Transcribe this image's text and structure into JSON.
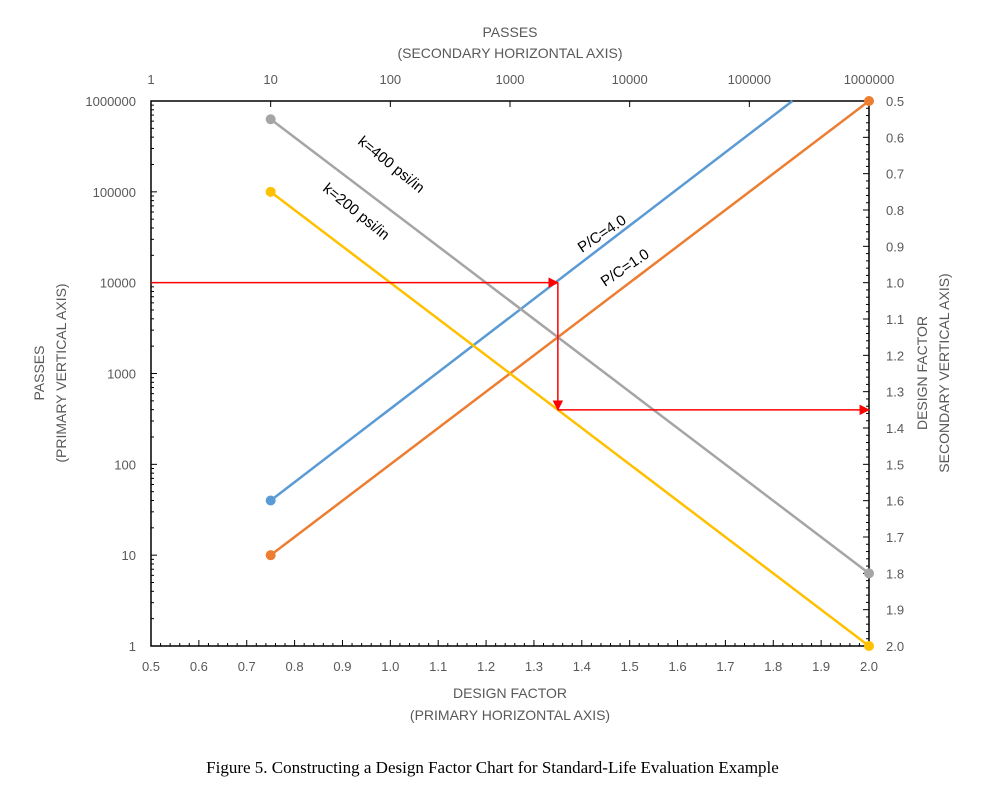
{
  "chart_data": {
    "type": "line",
    "caption": "Figure 5. Constructing a Design Factor Chart for Standard-Life Evaluation Example",
    "axes": {
      "primary_x": {
        "title": [
          "DESIGN FACTOR",
          "(PRIMARY HORIZONTAL AXIS)"
        ],
        "range": [
          0.5,
          2.0
        ],
        "ticks": [
          "0.5",
          "0.6",
          "0.7",
          "0.8",
          "0.9",
          "1.0",
          "1.1",
          "1.2",
          "1.3",
          "1.4",
          "1.5",
          "1.6",
          "1.7",
          "1.8",
          "1.9",
          "2.0"
        ]
      },
      "secondary_x": {
        "title": [
          "PASSES",
          "(SECONDARY HORIZONTAL AXIS)"
        ],
        "scale": "log",
        "range": [
          1,
          1000000
        ],
        "ticks": [
          "1",
          "10",
          "100",
          "1000",
          "10000",
          "100000",
          "1000000"
        ]
      },
      "primary_y": {
        "title": [
          "PASSES",
          "(PRIMARY VERTICAL AXIS)"
        ],
        "scale": "log",
        "range": [
          1,
          1000000
        ],
        "ticks": [
          "1",
          "10",
          "100",
          "1000",
          "10000",
          "100000",
          "1000000"
        ]
      },
      "secondary_y": {
        "title": [
          "DESIGN FACTOR",
          "SECONDARY VERTICAL AXIS)"
        ],
        "range": [
          0.5,
          2.0
        ],
        "reversed": true,
        "ticks": [
          "0.5",
          "0.6",
          "0.7",
          "0.8",
          "0.9",
          "1.0",
          "1.1",
          "1.2",
          "1.3",
          "1.4",
          "1.5",
          "1.6",
          "1.7",
          "1.8",
          "1.9",
          "2.0"
        ]
      }
    },
    "series": [
      {
        "name": "P/C=4.0",
        "color": "#5B9BD5",
        "x": [
          0.75,
          1.84
        ],
        "y": [
          40,
          1000000
        ],
        "markers": [
          true,
          false
        ]
      },
      {
        "name": "P/C=1.0",
        "color": "#ED7D31",
        "x": [
          0.75,
          2.0
        ],
        "y": [
          10,
          1000000
        ],
        "markers": [
          true,
          true
        ]
      },
      {
        "name": "k=400 psi/in",
        "color": "#A5A5A5",
        "x": [
          0.75,
          2.0
        ],
        "y": [
          630000,
          6.3
        ],
        "markers": [
          true,
          true
        ]
      },
      {
        "name": "k=200 psi/in",
        "color": "#FFC000",
        "x": [
          0.75,
          2.0
        ],
        "y": [
          100000,
          1
        ],
        "markers": [
          true,
          true
        ]
      }
    ],
    "construction_arrows": {
      "color": "#FF0000",
      "path": [
        {
          "x": 0.5,
          "y": 10000
        },
        {
          "x": 1.35,
          "y": 10000
        },
        {
          "x": 1.35,
          "y": 398
        },
        {
          "x": 2.0,
          "y": 398
        }
      ]
    }
  }
}
